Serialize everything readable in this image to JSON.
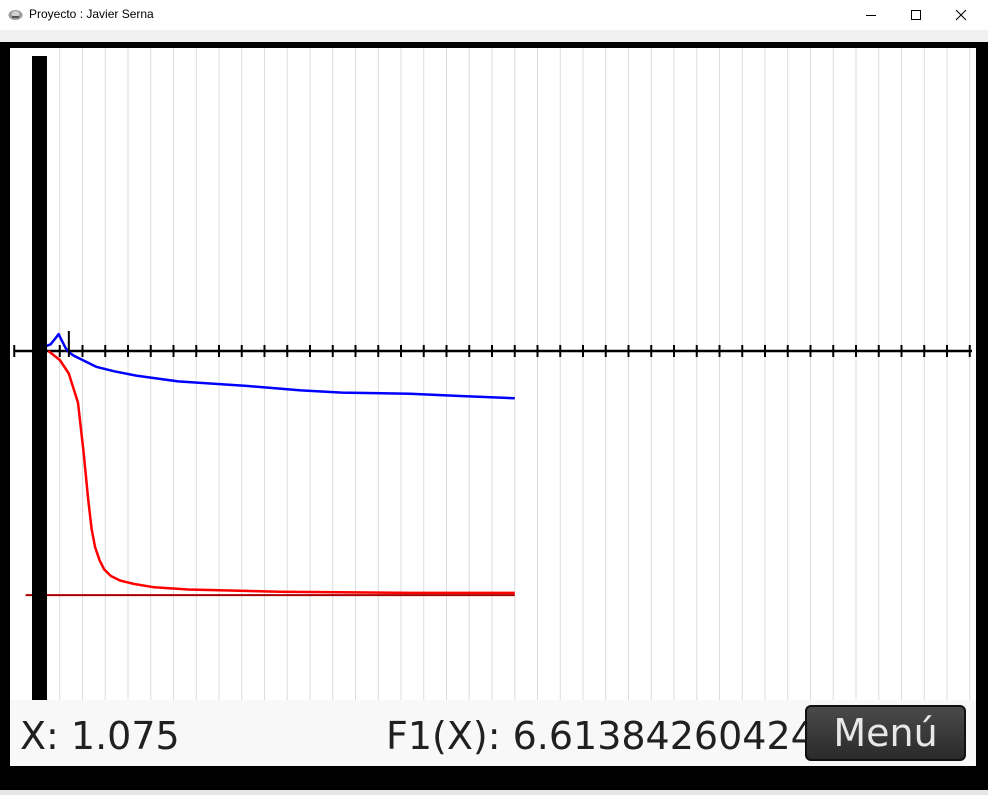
{
  "window": {
    "title": "Proyecto : Javier Serna",
    "icons": [
      "app-icon",
      "minimize-icon",
      "maximize-icon",
      "close-icon"
    ]
  },
  "status": {
    "x_text": "X: 1.075",
    "f_text": "F1(X): 6.61384260424",
    "menu_label": "Menú"
  },
  "colors": {
    "series_blue": "#0000ff",
    "series_red": "#ff0000",
    "reference_line": "#aa0000",
    "axis": "#000000",
    "grid": "#dcdcdc"
  },
  "chart_data": {
    "type": "line",
    "grid": true,
    "series": [
      {
        "color": "#0000ff",
        "x": [
          0,
          0.4,
          0.6,
          0.8,
          0.95,
          1.1,
          1.25,
          1.4,
          1.6,
          2.0,
          2.6,
          3.4,
          4.4,
          6.2,
          9.2,
          11.6,
          13.4,
          16.4,
          18.6,
          21.0
        ],
        "y": [
          0.2,
          0.22,
          0.3,
          0.55,
          0.75,
          0.45,
          0.15,
          -0.05,
          -0.2,
          -0.4,
          -0.7,
          -0.9,
          -1.1,
          -1.35,
          -1.55,
          -1.75,
          -1.85,
          -1.9,
          -2.0,
          -2.1
        ]
      },
      {
        "color": "#ff0000",
        "x": [
          0.5,
          1.0,
          1.4,
          1.8,
          2.05,
          2.25,
          2.4,
          2.55,
          2.75,
          2.95,
          3.25,
          3.65,
          4.25,
          5.15,
          6.65,
          10.65,
          16.45,
          21.0
        ],
        "y": [
          0,
          -0.4,
          -1.0,
          -2.3,
          -4.5,
          -6.6,
          -7.9,
          -8.7,
          -9.3,
          -9.7,
          -10.0,
          -10.2,
          -10.35,
          -10.5,
          -10.6,
          -10.7,
          -10.75,
          -10.75
        ]
      },
      {
        "color": "#aa0000",
        "x": [
          -0.5,
          21.0
        ],
        "y": [
          -10.85,
          -10.85
        ]
      }
    ]
  }
}
